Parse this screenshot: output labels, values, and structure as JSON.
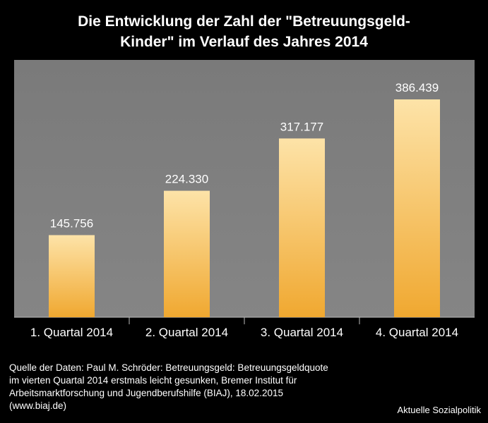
{
  "title": {
    "line1": "Die Entwicklung der Zahl der \"Betreuungsgeld-",
    "line2": "Kinder\" im Verlauf des Jahres 2014"
  },
  "chart_data": {
    "type": "bar",
    "title": "Die Entwicklung der Zahl der \"Betreuungsgeld-Kinder\" im Verlauf des Jahres 2014",
    "categories": [
      "1. Quartal 2014",
      "2. Quartal 2014",
      "3. Quartal 2014",
      "4. Quartal 2014"
    ],
    "values": [
      145756,
      224330,
      317177,
      386439
    ],
    "value_labels": [
      "145.756",
      "224.330",
      "317.177",
      "386.439"
    ],
    "xlabel": "",
    "ylabel": "",
    "ylim": [
      0,
      450000
    ],
    "grid": false,
    "legend": "none",
    "colors": {
      "plot_bg": "#7f7f7f",
      "bar_top": "#fde3a8",
      "bar_bottom": "#f0a830",
      "label_text": "#ffffff"
    }
  },
  "source": {
    "lines": [
      "Quelle der Daten: Paul M. Schröder: Betreuungsgeld: Betreuungsgeldquote",
      "im vierten Quartal 2014 erstmals leicht gesunken, Bremer Institut für",
      "Arbeitsmarktforschung und Jugendberufshilfe (BIAJ), 18.02.2015",
      "(www.biaj.de)"
    ]
  },
  "credit": "Aktuelle Sozialpolitik"
}
